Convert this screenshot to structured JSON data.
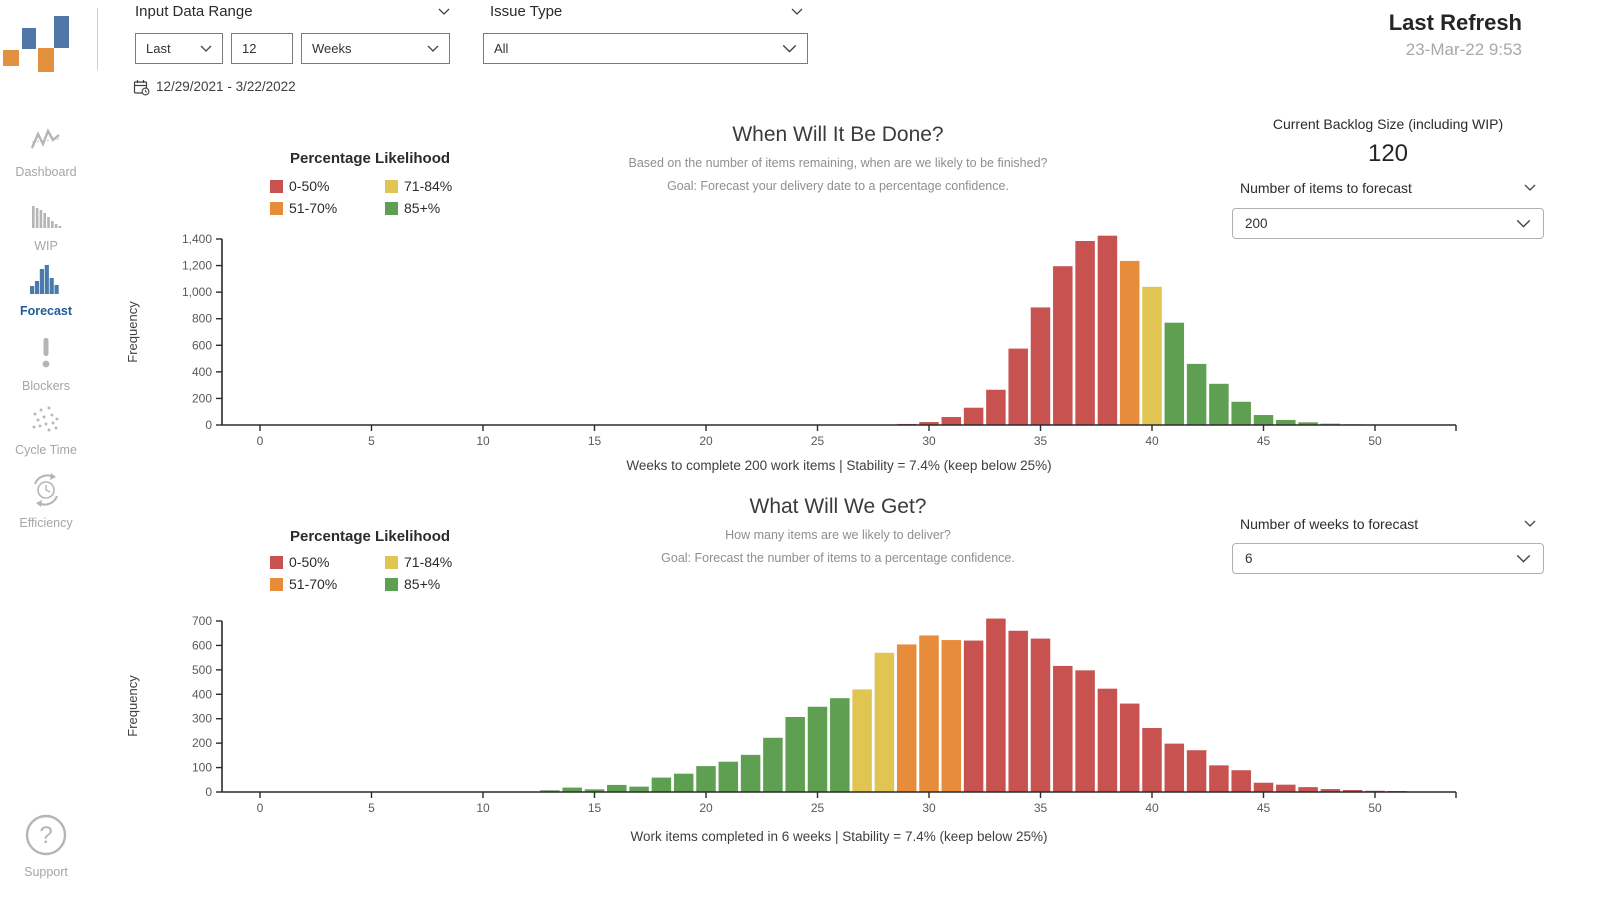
{
  "header": {
    "input_data_range_label": "Input Data Range",
    "range_mode": "Last",
    "range_count": "12",
    "range_unit": "Weeks",
    "issue_type_label": "Issue Type",
    "issue_type_value": "All",
    "date_range": "12/29/2021 - 3/22/2022",
    "last_refresh_label": "Last Refresh",
    "last_refresh_value": "23-Mar-22 9:53"
  },
  "sidebar": {
    "items": [
      {
        "label": "Dashboard",
        "icon": "line-chart-icon",
        "active": false
      },
      {
        "label": "WIP",
        "icon": "descending-bars-icon",
        "active": false
      },
      {
        "label": "Forecast",
        "icon": "histogram-icon",
        "active": true
      },
      {
        "label": "Blockers",
        "icon": "exclamation-icon",
        "active": false
      },
      {
        "label": "Cycle Time",
        "icon": "scatter-plot-icon",
        "active": false
      },
      {
        "label": "Efficiency",
        "icon": "clock-cycle-icon",
        "active": false
      }
    ],
    "support_label": "Support"
  },
  "right_panel": {
    "backlog_label": "Current Backlog Size (including WIP)",
    "backlog_value": "120",
    "items_forecast_label": "Number of items to forecast",
    "items_forecast_value": "200",
    "weeks_forecast_label": "Number of weeks to forecast",
    "weeks_forecast_value": "6"
  },
  "legend": {
    "title": "Percentage Likelihood",
    "entries": [
      {
        "label": "0-50%",
        "color": "#C7524F"
      },
      {
        "label": "51-70%",
        "color": "#E68C3A"
      },
      {
        "label": "71-84%",
        "color": "#E0C553"
      },
      {
        "label": "85+%",
        "color": "#5E9F52"
      }
    ]
  },
  "chart_data": [
    {
      "type": "bar",
      "title": "When Will It Be Done?",
      "subtitle1": "Based on the number of items remaining, when are we likely to be finished?",
      "subtitle2": "Goal: Forecast your delivery date to a percentage confidence.",
      "ylabel": "Frequency",
      "caption": "Weeks to complete 200 work items | Stability = 7.4% (keep below 25%)",
      "ylim": [
        0,
        1400
      ],
      "ytick_step": 200,
      "xticks": [
        0,
        5,
        10,
        15,
        20,
        25,
        30,
        35,
        40,
        45,
        50
      ],
      "x": [
        29,
        30,
        31,
        32,
        33,
        34,
        35,
        36,
        37,
        38,
        39,
        40,
        41,
        42,
        43,
        44,
        45,
        46,
        47,
        48,
        49
      ],
      "values": [
        8,
        22,
        60,
        130,
        265,
        575,
        885,
        1195,
        1385,
        1425,
        1235,
        1040,
        770,
        460,
        310,
        175,
        75,
        38,
        20,
        10,
        5
      ],
      "bands": [
        {
          "max_x": 38,
          "color": "#C7524F"
        },
        {
          "max_x": 39,
          "color": "#E68C3A"
        },
        {
          "max_x": 40,
          "color": "#E0C553"
        },
        {
          "max_x": 60,
          "color": "#5E9F52"
        }
      ],
      "legend_position": "top-left",
      "grid": false
    },
    {
      "type": "bar",
      "title": "What Will We Get?",
      "subtitle1": "How many items are we likely to deliver?",
      "subtitle2": "Goal: Forecast the number of items to a percentage confidence.",
      "ylabel": "Frequency",
      "caption": "Work items completed in 6 weeks | Stability = 7.4% (keep below 25%)",
      "ylim": [
        0,
        700
      ],
      "ytick_step": 100,
      "xticks": [
        0,
        5,
        10,
        15,
        20,
        25,
        30,
        35,
        40,
        45,
        50
      ],
      "x": [
        13,
        14,
        15,
        16,
        17,
        18,
        19,
        20,
        21,
        22,
        23,
        24,
        25,
        26,
        27,
        28,
        29,
        30,
        31,
        32,
        33,
        34,
        35,
        36,
        37,
        38,
        39,
        40,
        41,
        42,
        43,
        44,
        45,
        46,
        47,
        48,
        49,
        50,
        51
      ],
      "values": [
        7,
        18,
        11,
        29,
        22,
        59,
        75,
        106,
        124,
        152,
        222,
        307,
        349,
        384,
        420,
        570,
        604,
        641,
        622,
        620,
        710,
        660,
        628,
        516,
        498,
        423,
        362,
        262,
        198,
        171,
        109,
        89,
        38,
        30,
        20,
        12,
        8,
        5,
        4
      ],
      "bands": [
        {
          "max_x": 26,
          "color": "#5E9F52"
        },
        {
          "max_x": 28,
          "color": "#E0C553"
        },
        {
          "max_x": 31,
          "color": "#E68C3A"
        },
        {
          "max_x": 60,
          "color": "#C7524F"
        }
      ],
      "legend_position": "top-left",
      "grid": false
    }
  ],
  "colors": {
    "logo_blue": "#5077A8",
    "logo_orange": "#E2903D",
    "active_nav": "#1F5C99",
    "icon_gray": "#B5B5B5"
  }
}
